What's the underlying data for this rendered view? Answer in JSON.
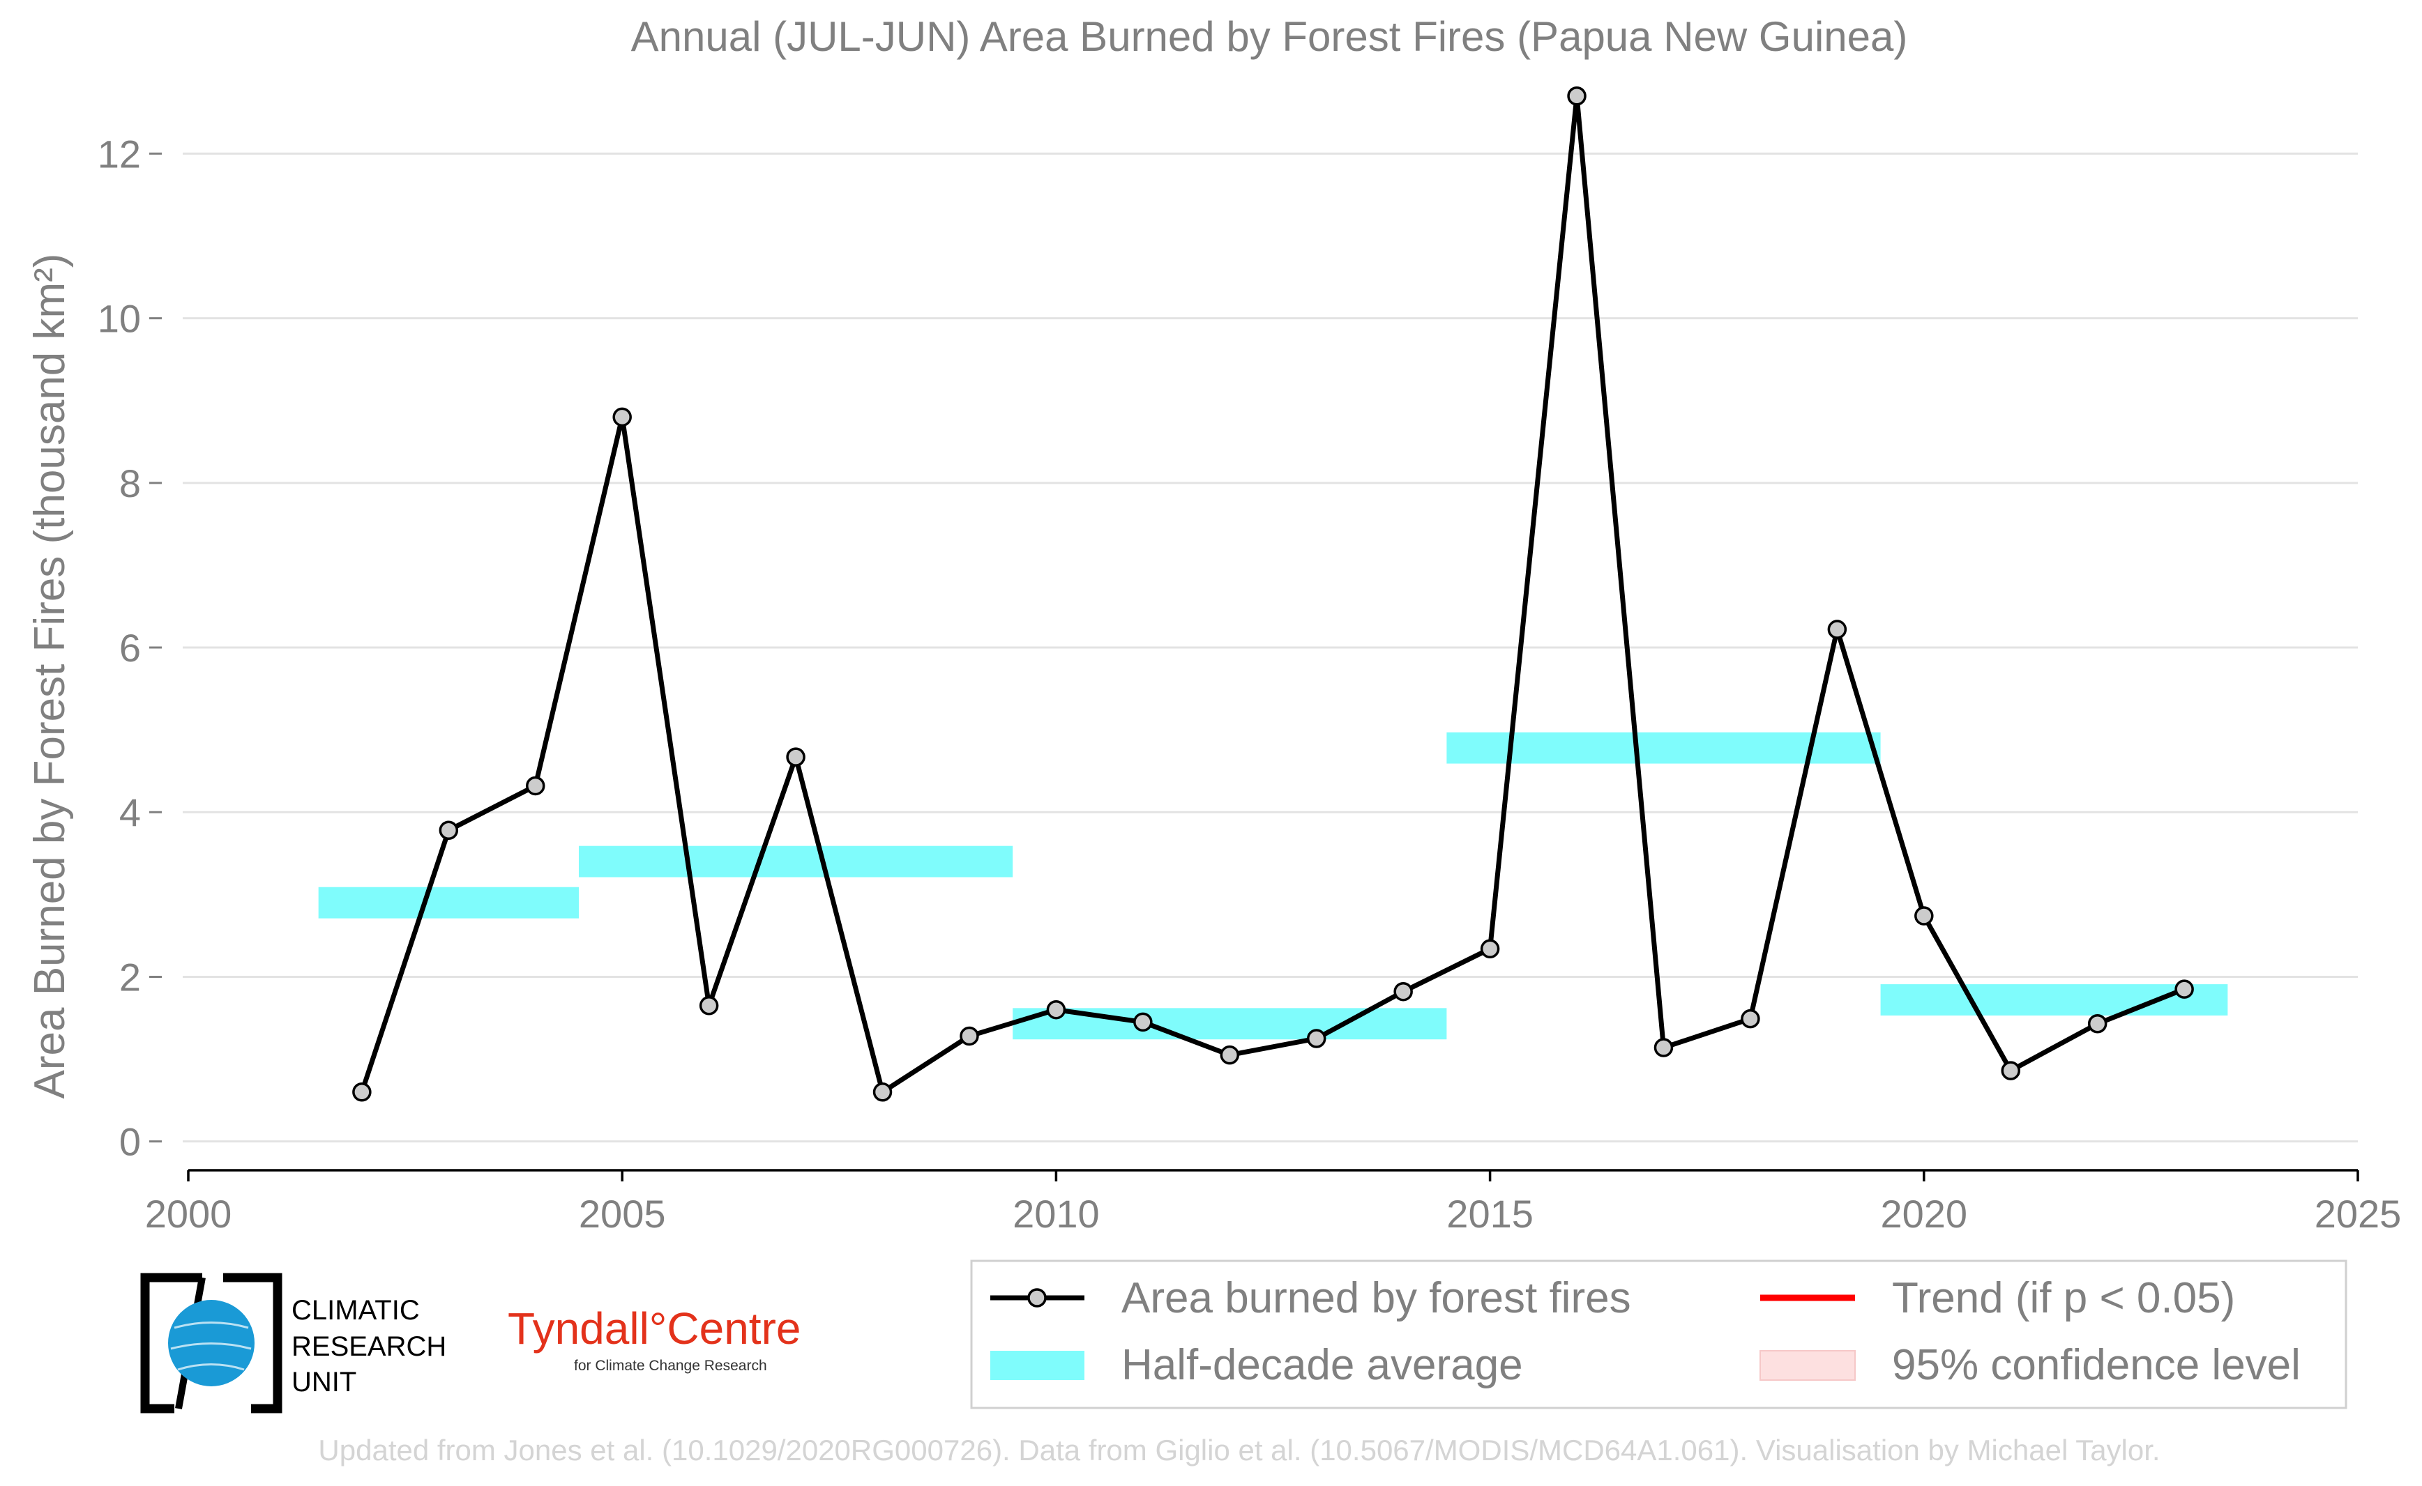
{
  "chart_data": {
    "type": "line",
    "title": "Annual (JUL-JUN) Area Burned by Forest Fires (Papua New Guinea)",
    "ylabel": "Area Burned by Forest Fires (thousand km²)",
    "xlabel": "",
    "xlim": [
      2000,
      2025
    ],
    "ylim": [
      -0.35,
      12.85
    ],
    "x_ticks": [
      2000,
      2005,
      2010,
      2015,
      2020,
      2025
    ],
    "y_ticks": [
      0,
      2,
      4,
      6,
      8,
      10,
      12
    ],
    "grid": true,
    "series": [
      {
        "name": "Area burned by forest fires",
        "color": "#000000",
        "marker_fill": "#cccccc",
        "x": [
          2002,
          2003,
          2004,
          2005,
          2006,
          2007,
          2008,
          2009,
          2010,
          2011,
          2012,
          2013,
          2014,
          2015,
          2016,
          2017,
          2018,
          2019,
          2020,
          2021,
          2022,
          2023
        ],
        "values": [
          0.6,
          3.78,
          4.32,
          8.8,
          1.65,
          4.67,
          0.6,
          1.28,
          1.6,
          1.45,
          1.05,
          1.25,
          1.82,
          2.34,
          12.7,
          1.14,
          1.49,
          6.22,
          2.74,
          0.86,
          1.43,
          1.85
        ]
      }
    ],
    "half_decade_average": {
      "name": "Half-decade average",
      "color": "#7ffcfc",
      "band_height": 0.38,
      "segments": [
        {
          "x0": 2001.5,
          "x1": 2004.5,
          "y": 2.9
        },
        {
          "x0": 2004.5,
          "x1": 2009.5,
          "y": 3.4
        },
        {
          "x0": 2009.5,
          "x1": 2014.5,
          "y": 1.43
        },
        {
          "x0": 2014.5,
          "x1": 2019.5,
          "y": 4.78
        },
        {
          "x0": 2019.5,
          "x1": 2023.5,
          "y": 1.72
        }
      ]
    },
    "legend": {
      "position": "bottom-right",
      "entries": [
        {
          "label": "Area burned by forest fires",
          "kind": "line-marker",
          "color": "#000000"
        },
        {
          "label": "Trend (if p < 0.05)",
          "kind": "line",
          "color": "#ff0000"
        },
        {
          "label": "Half-decade average",
          "kind": "band",
          "color": "#7ffcfc"
        },
        {
          "label": "95% confidence level",
          "kind": "band",
          "color": "#fde0e0"
        }
      ]
    }
  },
  "logos": {
    "cru_lines": [
      "CLIMATIC",
      "RESEARCH",
      "UNIT"
    ],
    "tyndall_name": "Tyndall°Centre",
    "tyndall_sub": "for Climate Change Research"
  },
  "footer": "Updated from Jones et al. (10.1029/2020RG000726). Data from Giglio et al. (10.5067/MODIS/MCD64A1.061). Visualisation by Michael Taylor."
}
